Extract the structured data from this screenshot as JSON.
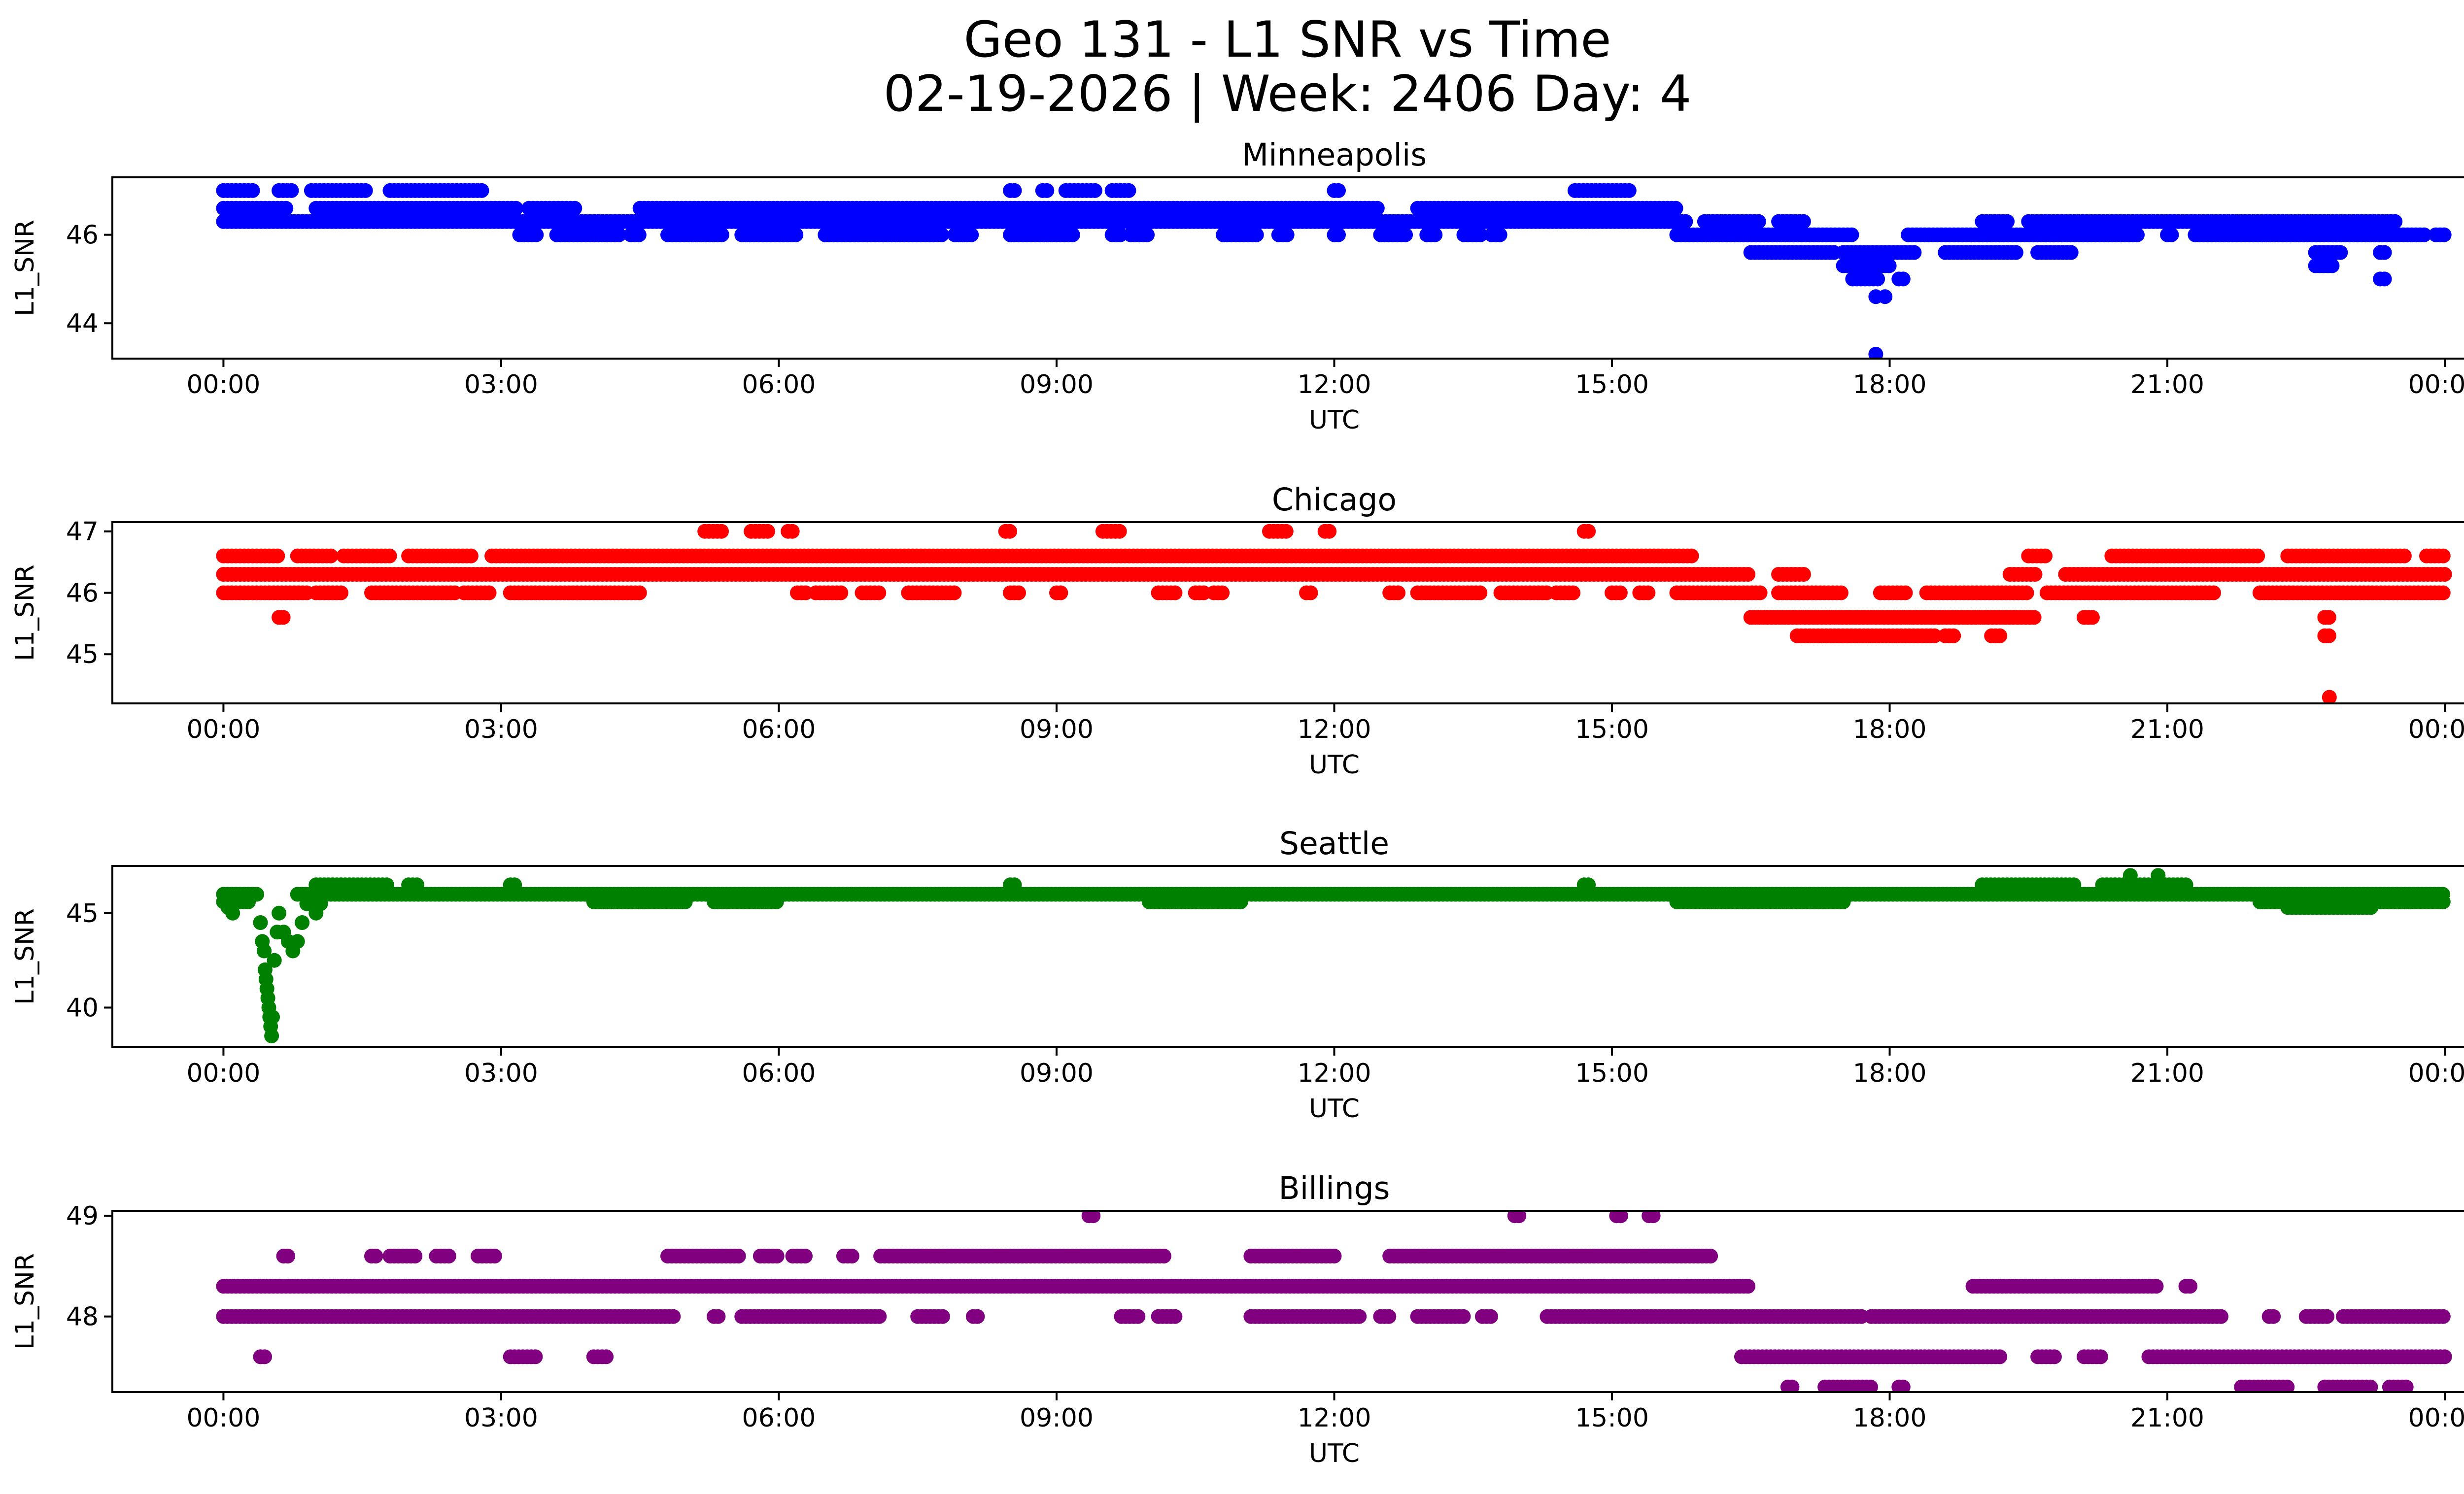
{
  "figure": {
    "title_line1": "Geo 131 - L1 SNR vs Time",
    "title_line2": "02-19-2026 | Week: 2406 Day: 4"
  },
  "chart_data": [
    {
      "type": "scatter",
      "title": "Minneapolis",
      "color": "#0000ff",
      "xlabel": "UTC",
      "ylabel": "L1_SNR",
      "xlim_hours": [
        -1.2,
        25.2
      ],
      "ylim": [
        43.2,
        47.3
      ],
      "yticks": [
        44,
        46
      ],
      "xtick_labels": [
        "00:00",
        "03:00",
        "06:00",
        "09:00",
        "12:00",
        "15:00",
        "18:00",
        "21:00",
        "00:00"
      ],
      "bands": [
        {
          "y": 47.0,
          "segments": [
            [
              0.0,
              0.35
            ],
            [
              0.6,
              0.75
            ],
            [
              0.95,
              1.55
            ],
            [
              1.8,
              2.8
            ],
            [
              8.5,
              8.55
            ],
            [
              8.85,
              8.9
            ],
            [
              9.1,
              9.45
            ],
            [
              9.6,
              9.8
            ],
            [
              12.0,
              12.05
            ],
            [
              14.6,
              15.2
            ]
          ]
        },
        {
          "y": 46.6,
          "segments": [
            [
              0.0,
              0.7
            ],
            [
              1.0,
              3.2
            ],
            [
              3.3,
              3.8
            ],
            [
              4.5,
              12.5
            ],
            [
              12.9,
              15.7
            ]
          ]
        },
        {
          "y": 46.3,
          "segments": [
            [
              0.0,
              15.8
            ],
            [
              16.0,
              16.6
            ],
            [
              16.8,
              17.1
            ],
            [
              19.0,
              19.3
            ],
            [
              19.5,
              23.5
            ]
          ]
        },
        {
          "y": 46.0,
          "segments": [
            [
              3.2,
              3.4
            ],
            [
              3.6,
              4.3
            ],
            [
              4.4,
              4.5
            ],
            [
              4.8,
              5.4
            ],
            [
              5.6,
              6.2
            ],
            [
              6.5,
              6.8
            ],
            [
              6.5,
              7.8
            ],
            [
              7.9,
              8.1
            ],
            [
              8.5,
              9.2
            ],
            [
              9.6,
              9.7
            ],
            [
              9.8,
              10.0
            ],
            [
              10.8,
              11.2
            ],
            [
              11.4,
              11.5
            ],
            [
              12.0,
              12.05
            ],
            [
              12.5,
              12.8
            ],
            [
              13.0,
              13.1
            ],
            [
              13.4,
              13.6
            ],
            [
              13.7,
              13.8
            ],
            [
              15.7,
              17.6
            ],
            [
              18.2,
              20.7
            ],
            [
              21.0,
              21.05
            ],
            [
              21.3,
              23.8
            ],
            [
              23.9,
              24.0
            ]
          ]
        },
        {
          "y": 45.6,
          "segments": [
            [
              16.5,
              17.4
            ],
            [
              17.5,
              18.3
            ],
            [
              18.6,
              19.4
            ],
            [
              19.6,
              20.0
            ],
            [
              22.6,
              22.9
            ],
            [
              23.3,
              23.35
            ]
          ]
        },
        {
          "y": 45.3,
          "segments": [
            [
              17.5,
              18.0
            ],
            [
              22.6,
              22.8
            ]
          ]
        },
        {
          "y": 45.0,
          "segments": [
            [
              17.6,
              17.9
            ],
            [
              18.1,
              18.15
            ],
            [
              23.3,
              23.35
            ]
          ]
        }
      ],
      "points": [
        {
          "x": 17.85,
          "y": 44.6
        },
        {
          "x": 17.95,
          "y": 44.6
        },
        {
          "x": 17.85,
          "y": 43.3
        }
      ]
    },
    {
      "type": "scatter",
      "title": "Chicago",
      "color": "#ff0000",
      "xlabel": "UTC",
      "ylabel": "L1_SNR",
      "xlim_hours": [
        -1.2,
        25.2
      ],
      "ylim": [
        44.2,
        47.15
      ],
      "yticks": [
        45,
        46,
        47
      ],
      "xtick_labels": [
        "00:00",
        "03:00",
        "06:00",
        "09:00",
        "12:00",
        "15:00",
        "18:00",
        "21:00",
        "00:00"
      ],
      "bands": [
        {
          "y": 47.0,
          "segments": [
            [
              5.2,
              5.4
            ],
            [
              5.7,
              5.9
            ],
            [
              6.1,
              6.15
            ],
            [
              8.45,
              8.5
            ],
            [
              9.5,
              9.7
            ],
            [
              11.3,
              11.5
            ],
            [
              11.9,
              11.95
            ],
            [
              14.7,
              14.75
            ]
          ]
        },
        {
          "y": 46.6,
          "segments": [
            [
              0.0,
              0.6
            ],
            [
              0.8,
              1.2
            ],
            [
              1.3,
              1.8
            ],
            [
              2.0,
              2.7
            ],
            [
              2.9,
              15.9
            ],
            [
              19.5,
              19.7
            ],
            [
              20.4,
              22.0
            ],
            [
              22.3,
              23.6
            ],
            [
              23.8,
              24.0
            ]
          ]
        },
        {
          "y": 46.3,
          "segments": [
            [
              0.0,
              16.5
            ],
            [
              16.8,
              17.1
            ],
            [
              19.3,
              19.6
            ],
            [
              19.9,
              24.0
            ]
          ]
        },
        {
          "y": 46.0,
          "segments": [
            [
              0.0,
              0.9
            ],
            [
              1.0,
              1.3
            ],
            [
              1.6,
              2.5
            ],
            [
              2.6,
              2.9
            ],
            [
              3.1,
              4.5
            ],
            [
              6.2,
              6.3
            ],
            [
              6.4,
              6.7
            ],
            [
              6.9,
              7.1
            ],
            [
              7.4,
              7.9
            ],
            [
              8.5,
              8.6
            ],
            [
              9.0,
              9.05
            ],
            [
              10.1,
              10.3
            ],
            [
              10.5,
              10.6
            ],
            [
              10.7,
              10.8
            ],
            [
              11.7,
              11.75
            ],
            [
              12.6,
              12.7
            ],
            [
              12.9,
              13.6
            ],
            [
              13.8,
              14.3
            ],
            [
              14.4,
              14.6
            ],
            [
              15.0,
              15.1
            ],
            [
              15.3,
              15.4
            ],
            [
              15.7,
              16.6
            ],
            [
              16.8,
              17.5
            ],
            [
              17.9,
              18.2
            ],
            [
              18.4,
              19.5
            ],
            [
              19.7,
              21.5
            ],
            [
              22.0,
              24.0
            ]
          ]
        },
        {
          "y": 45.6,
          "segments": [
            [
              0.6,
              0.65
            ],
            [
              16.5,
              19.6
            ],
            [
              20.1,
              20.2
            ],
            [
              22.7,
              22.75
            ]
          ]
        },
        {
          "y": 45.3,
          "segments": [
            [
              17.0,
              18.5
            ],
            [
              18.6,
              18.7
            ],
            [
              19.1,
              19.2
            ],
            [
              22.7,
              22.75
            ]
          ]
        }
      ],
      "points": [
        {
          "x": 22.75,
          "y": 44.3
        }
      ]
    },
    {
      "type": "scatter",
      "title": "Seattle",
      "color": "#008000",
      "xlabel": "UTC",
      "ylabel": "L1_SNR",
      "xlim_hours": [
        -1.2,
        25.2
      ],
      "ylim": [
        37.9,
        47.5
      ],
      "yticks": [
        40,
        45
      ],
      "xtick_labels": [
        "00:00",
        "03:00",
        "06:00",
        "09:00",
        "12:00",
        "15:00",
        "18:00",
        "21:00",
        "00:00"
      ],
      "bands": [
        {
          "y": 46.5,
          "segments": [
            [
              1.0,
              1.8
            ],
            [
              2.0,
              2.1
            ],
            [
              3.1,
              3.15
            ],
            [
              8.5,
              8.55
            ],
            [
              14.7,
              14.75
            ],
            [
              19.0,
              20.0
            ],
            [
              20.3,
              21.2
            ]
          ]
        },
        {
          "y": 46.0,
          "segments": [
            [
              0.0,
              0.4
            ],
            [
              0.8,
              24.0
            ]
          ]
        },
        {
          "y": 45.6,
          "segments": [
            [
              0.0,
              0.3
            ],
            [
              4.0,
              5.0
            ],
            [
              5.3,
              6.0
            ],
            [
              10.0,
              11.0
            ],
            [
              15.7,
              17.5
            ],
            [
              22.0,
              24.0
            ]
          ]
        },
        {
          "y": 45.3,
          "segments": [
            [
              22.3,
              23.2
            ]
          ]
        }
      ],
      "points": [
        {
          "x": 0.05,
          "y": 45.3
        },
        {
          "x": 0.1,
          "y": 45.0
        },
        {
          "x": 0.4,
          "y": 44.5
        },
        {
          "x": 0.42,
          "y": 43.5
        },
        {
          "x": 0.44,
          "y": 43.0
        },
        {
          "x": 0.45,
          "y": 42.0
        },
        {
          "x": 0.46,
          "y": 41.5
        },
        {
          "x": 0.47,
          "y": 41.0
        },
        {
          "x": 0.48,
          "y": 40.5
        },
        {
          "x": 0.49,
          "y": 40.0
        },
        {
          "x": 0.5,
          "y": 39.5
        },
        {
          "x": 0.51,
          "y": 39.0
        },
        {
          "x": 0.52,
          "y": 38.5
        },
        {
          "x": 0.53,
          "y": 39.5
        },
        {
          "x": 0.55,
          "y": 42.5
        },
        {
          "x": 0.58,
          "y": 44.0
        },
        {
          "x": 0.6,
          "y": 45.0
        },
        {
          "x": 0.65,
          "y": 44.0
        },
        {
          "x": 0.7,
          "y": 43.5
        },
        {
          "x": 0.75,
          "y": 43.0
        },
        {
          "x": 0.8,
          "y": 43.5
        },
        {
          "x": 0.85,
          "y": 44.5
        },
        {
          "x": 0.9,
          "y": 45.5
        },
        {
          "x": 1.0,
          "y": 45.0
        },
        {
          "x": 1.05,
          "y": 45.5
        },
        {
          "x": 20.6,
          "y": 47.0
        },
        {
          "x": 20.9,
          "y": 47.0
        }
      ]
    },
    {
      "type": "scatter",
      "title": "Billings",
      "color": "#800080",
      "xlabel": "UTC",
      "ylabel": "L1_SNR",
      "xlim_hours": [
        -1.2,
        25.2
      ],
      "ylim": [
        47.25,
        49.05
      ],
      "yticks": [
        48,
        49
      ],
      "xtick_labels": [
        "00:00",
        "03:00",
        "06:00",
        "09:00",
        "12:00",
        "15:00",
        "18:00",
        "21:00",
        "00:00"
      ],
      "bands": [
        {
          "y": 49.0,
          "segments": [
            [
              9.35,
              9.4
            ],
            [
              13.95,
              14.0
            ],
            [
              15.05,
              15.1
            ],
            [
              15.4,
              15.45
            ]
          ]
        },
        {
          "y": 48.6,
          "segments": [
            [
              0.65,
              0.7
            ],
            [
              1.6,
              1.65
            ],
            [
              1.8,
              2.1
            ],
            [
              2.3,
              2.45
            ],
            [
              2.75,
              2.95
            ],
            [
              4.8,
              5.6
            ],
            [
              5.8,
              6.0
            ],
            [
              6.15,
              6.3
            ],
            [
              6.7,
              6.8
            ],
            [
              7.1,
              10.2
            ],
            [
              11.1,
              12.0
            ],
            [
              12.6,
              16.1
            ]
          ]
        },
        {
          "y": 48.3,
          "segments": [
            [
              0.0,
              16.5
            ],
            [
              18.9,
              20.9
            ],
            [
              21.2,
              21.25
            ]
          ]
        },
        {
          "y": 48.0,
          "segments": [
            [
              0.0,
              4.9
            ],
            [
              5.3,
              5.35
            ],
            [
              5.6,
              7.1
            ],
            [
              7.5,
              7.8
            ],
            [
              8.1,
              8.15
            ],
            [
              9.7,
              9.9
            ],
            [
              10.1,
              10.3
            ],
            [
              11.1,
              12.3
            ],
            [
              12.5,
              12.6
            ],
            [
              12.9,
              13.4
            ],
            [
              13.6,
              13.7
            ],
            [
              14.3,
              16.3
            ],
            [
              16.3,
              17.7
            ],
            [
              17.8,
              21.6
            ],
            [
              22.1,
              22.15
            ],
            [
              22.5,
              22.75
            ],
            [
              22.9,
              24.0
            ]
          ]
        },
        {
          "y": 47.6,
          "segments": [
            [
              0.4,
              0.45
            ],
            [
              3.1,
              3.4
            ],
            [
              4.0,
              4.15
            ],
            [
              16.4,
              19.2
            ],
            [
              19.6,
              19.8
            ],
            [
              20.1,
              20.3
            ],
            [
              20.8,
              24.0
            ]
          ]
        },
        {
          "y": 47.3,
          "segments": [
            [
              16.9,
              16.95
            ],
            [
              17.3,
              17.8
            ],
            [
              18.1,
              18.15
            ],
            [
              21.8,
              22.3
            ],
            [
              22.7,
              23.2
            ],
            [
              23.4,
              23.6
            ]
          ]
        }
      ],
      "points": []
    }
  ]
}
